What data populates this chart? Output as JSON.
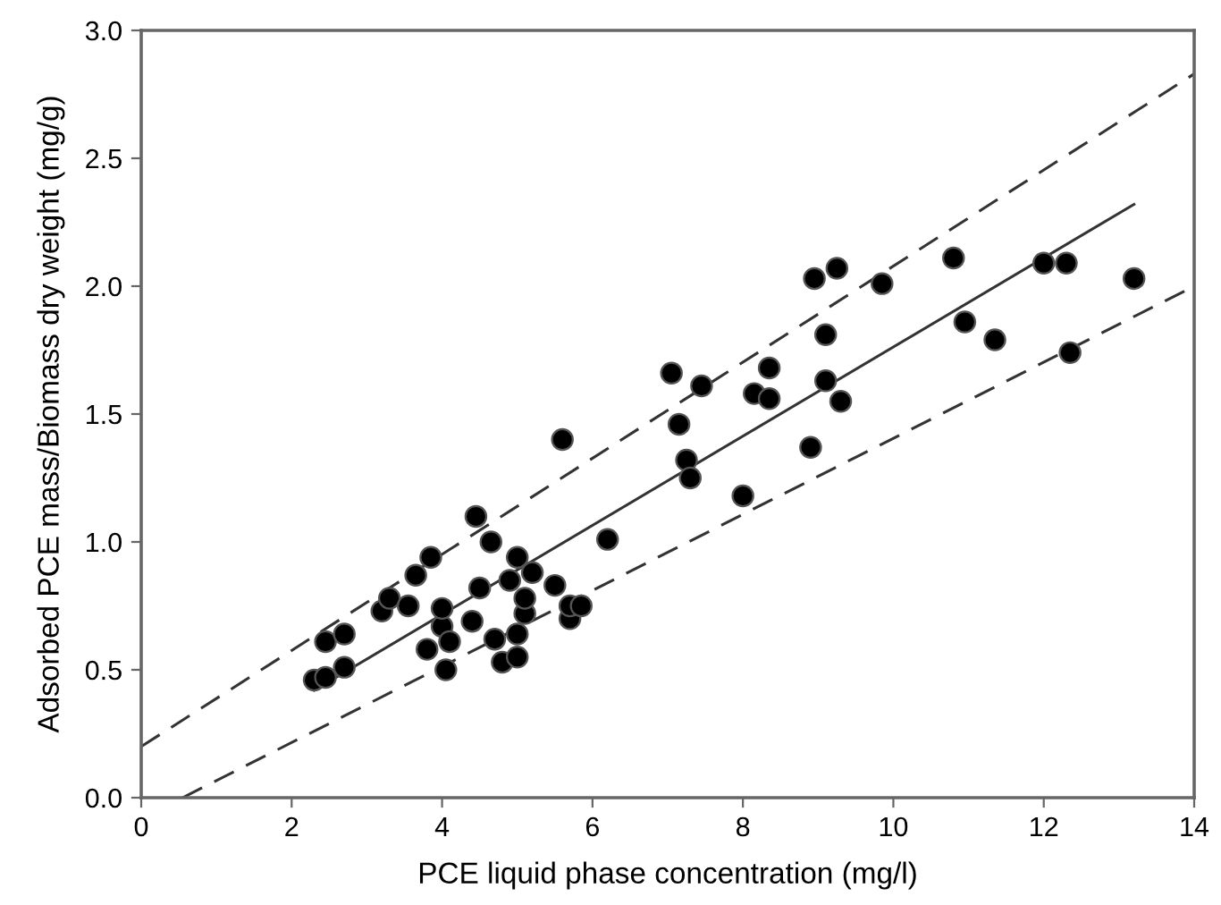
{
  "chart_data": {
    "type": "scatter",
    "xlabel": "PCE liquid phase concentration (mg/l)",
    "ylabel": "Adsorbed PCE mass/Biomass dry weight (mg/g)",
    "xlim": [
      0,
      14
    ],
    "ylim": [
      0,
      3.0
    ],
    "xticks": [
      0,
      2,
      4,
      6,
      8,
      10,
      12,
      14
    ],
    "yticks": [
      {
        "value": 0,
        "label": "0.0"
      },
      {
        "value": 0.5,
        "label": "0.5"
      },
      {
        "value": 1.0,
        "label": "1.0"
      },
      {
        "value": 1.5,
        "label": "1.5"
      },
      {
        "value": 2.0,
        "label": "2.0"
      },
      {
        "value": 2.5,
        "label": "2.5"
      },
      {
        "value": 3.0,
        "label": "3.0"
      }
    ],
    "grid": false,
    "legend": false,
    "series": [
      {
        "color": "#000000",
        "marker": "circle",
        "x": [
          2.3,
          2.45,
          2.45,
          2.7,
          2.7,
          3.2,
          3.3,
          3.55,
          3.65,
          3.85,
          3.8,
          4.0,
          4.0,
          4.1,
          4.05,
          4.4,
          4.45,
          4.5,
          4.65,
          4.7,
          4.8,
          4.9,
          5.0,
          5.0,
          5.0,
          5.1,
          5.1,
          5.2,
          5.5,
          5.6,
          5.7,
          5.7,
          5.85,
          6.2,
          7.05,
          7.15,
          7.25,
          7.3,
          7.45,
          8.0,
          8.15,
          8.35,
          8.35,
          8.9,
          8.95,
          9.1,
          9.1,
          9.25,
          9.3,
          9.85,
          10.8,
          10.95,
          11.35,
          12.0,
          12.3,
          12.35,
          13.2
        ],
        "values": [
          0.46,
          0.47,
          0.61,
          0.64,
          0.51,
          0.73,
          0.78,
          0.75,
          0.87,
          0.94,
          0.58,
          0.67,
          0.74,
          0.61,
          0.5,
          0.69,
          1.1,
          0.82,
          1.0,
          0.62,
          0.53,
          0.85,
          0.94,
          0.55,
          0.64,
          0.72,
          0.78,
          0.88,
          0.83,
          1.4,
          0.7,
          0.75,
          0.75,
          1.01,
          1.66,
          1.46,
          1.32,
          1.25,
          1.61,
          1.18,
          1.58,
          1.68,
          1.56,
          1.37,
          2.03,
          1.81,
          1.63,
          2.07,
          1.55,
          2.01,
          2.11,
          1.86,
          1.79,
          2.09,
          2.09,
          1.74,
          2.03
        ]
      },
      {
        "type": "line",
        "color": "#333333",
        "line_style": "solid",
        "marker": "none",
        "x": [
          2.3,
          13.2
        ],
        "values": [
          0.42,
          2.32
        ]
      },
      {
        "type": "line",
        "color": "#333333",
        "line_style": "dashed",
        "marker": "none",
        "x": [
          0,
          14
        ],
        "values": [
          0.2,
          2.83
        ]
      },
      {
        "type": "line",
        "color": "#333333",
        "line_style": "dashed",
        "marker": "none",
        "x": [
          0.55,
          14
        ],
        "values": [
          0,
          2.0
        ]
      }
    ]
  }
}
